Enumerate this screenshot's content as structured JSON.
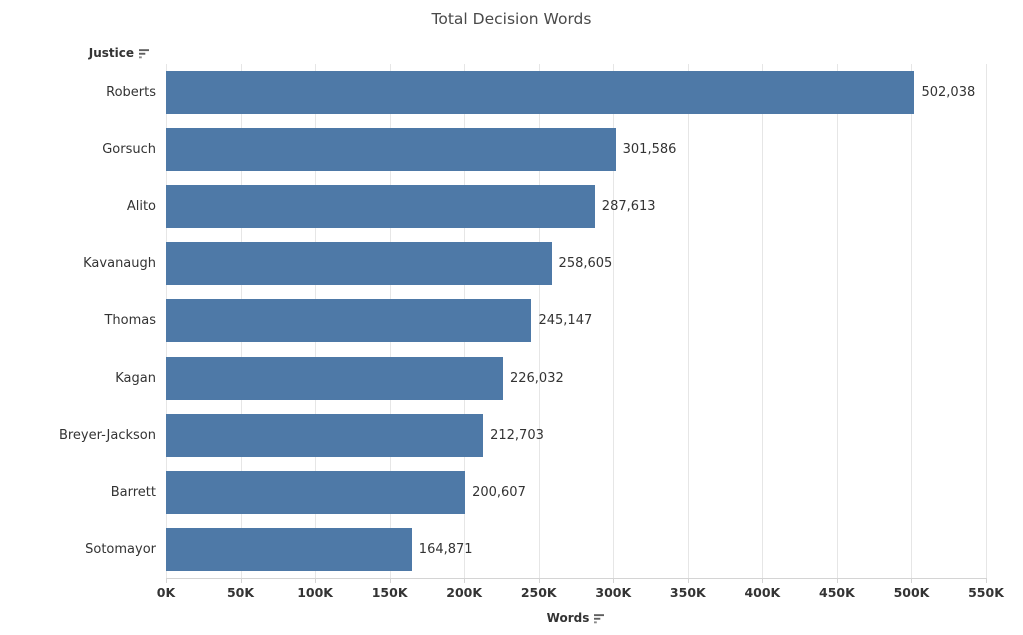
{
  "title": "Total Decision Words",
  "row_header": {
    "label": "Justice",
    "sort_icon": "sort-descending"
  },
  "axis": {
    "label": "Words",
    "sort_icon": "sort-descending",
    "tick_labels": [
      "0K",
      "50K",
      "100K",
      "150K",
      "200K",
      "250K",
      "300K",
      "350K",
      "400K",
      "450K",
      "500K",
      "550K"
    ]
  },
  "colors": {
    "bar": "#4e79a7",
    "gridline": "#e6e6e6",
    "axis_line": "#d4d4d4",
    "title_text": "#4a4a4a",
    "label_text": "#333333"
  },
  "chart_data": {
    "type": "bar",
    "orientation": "horizontal",
    "title": "Total Decision Words",
    "xlabel": "Words",
    "ylabel": "Justice",
    "xlim": [
      0,
      550000
    ],
    "grid": "vertical",
    "legend": "none",
    "categories": [
      "Roberts",
      "Gorsuch",
      "Alito",
      "Kavanaugh",
      "Thomas",
      "Kagan",
      "Breyer-Jackson",
      "Barrett",
      "Sotomayor"
    ],
    "values": [
      502038,
      301586,
      287613,
      258605,
      245147,
      226032,
      212703,
      200607,
      164871
    ],
    "value_labels": [
      "502,038",
      "301,586",
      "287,613",
      "258,605",
      "245,147",
      "226,032",
      "212,703",
      "200,607",
      "164,871"
    ],
    "x_tick_labels": [
      "0K",
      "50K",
      "100K",
      "150K",
      "200K",
      "250K",
      "300K",
      "350K",
      "400K",
      "450K",
      "500K",
      "550K"
    ]
  }
}
